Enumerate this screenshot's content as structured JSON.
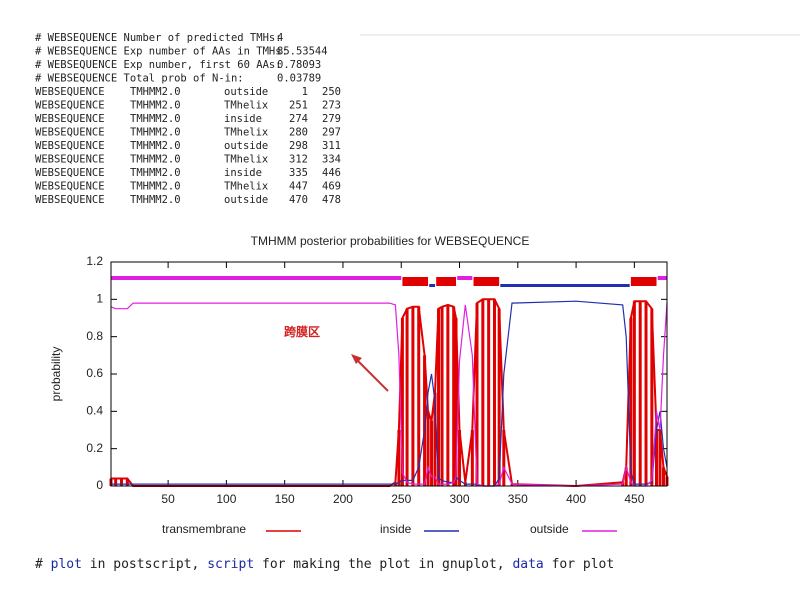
{
  "header_lines": [
    {
      "label": "# WEBSEQUENCE Number of predicted TMHs:",
      "value": 4
    },
    {
      "label": "# WEBSEQUENCE Exp number of AAs in TMHs:",
      "value": 85.53544
    },
    {
      "label": "# WEBSEQUENCE Exp number, first 60 AAs:",
      "value": 0.78093
    },
    {
      "label": "# WEBSEQUENCE Total prob of N-in:",
      "value": 0.03789
    }
  ],
  "table": {
    "rows": [
      [
        "WEBSEQUENCE",
        "TMHMM2.0",
        "outside",
        1,
        250
      ],
      [
        "WEBSEQUENCE",
        "TMHMM2.0",
        "TMhelix",
        251,
        273
      ],
      [
        "WEBSEQUENCE",
        "TMHMM2.0",
        "inside",
        274,
        279
      ],
      [
        "WEBSEQUENCE",
        "TMHMM2.0",
        "TMhelix",
        280,
        297
      ],
      [
        "WEBSEQUENCE",
        "TMHMM2.0",
        "outside",
        298,
        311
      ],
      [
        "WEBSEQUENCE",
        "TMHMM2.0",
        "TMhelix",
        312,
        334
      ],
      [
        "WEBSEQUENCE",
        "TMHMM2.0",
        "inside",
        335,
        446
      ],
      [
        "WEBSEQUENCE",
        "TMHMM2.0",
        "TMhelix",
        447,
        469
      ],
      [
        "WEBSEQUENCE",
        "TMHMM2.0",
        "outside",
        470,
        478
      ]
    ]
  },
  "chart_data": {
    "type": "line",
    "title": "TMHMM posterior probabilities for WEBSEQUENCE",
    "y_label": "probability",
    "annotation": "跨膜区",
    "region_colors": {
      "outside": "#e020e0",
      "TMhelix": "#e00000",
      "inside": "#2030b0"
    },
    "x": [
      1,
      5,
      10,
      15,
      20,
      30,
      50,
      100,
      150,
      200,
      240,
      245,
      248,
      251,
      255,
      260,
      265,
      270,
      273,
      276,
      279,
      282,
      285,
      290,
      295,
      297,
      300,
      305,
      311,
      315,
      320,
      325,
      330,
      334,
      338,
      345,
      400,
      440,
      443,
      447,
      450,
      455,
      460,
      465,
      469,
      472,
      475,
      478
    ],
    "series": [
      {
        "name": "transmembrane",
        "color": "#e00000",
        "style": "impulses",
        "values": [
          0.04,
          0.04,
          0.04,
          0.04,
          0,
          0,
          0,
          0,
          0,
          0,
          0,
          0.02,
          0.3,
          0.9,
          0.95,
          0.96,
          0.96,
          0.7,
          0.4,
          0.35,
          0.5,
          0.95,
          0.96,
          0.97,
          0.96,
          0.9,
          0.3,
          0.02,
          0.3,
          0.98,
          1,
          1,
          1,
          0.95,
          0.3,
          0.01,
          0,
          0.02,
          0.1,
          0.9,
          0.99,
          0.99,
          0.99,
          0.95,
          0.3,
          0.3,
          0.1,
          0.05
        ]
      },
      {
        "name": "inside",
        "color": "#2030b0",
        "style": "line",
        "values": [
          0.01,
          0.01,
          0.01,
          0.01,
          0.01,
          0.01,
          0.01,
          0.01,
          0.01,
          0.01,
          0.01,
          0.01,
          0.02,
          0.03,
          0.03,
          0.03,
          0.1,
          0.3,
          0.5,
          0.6,
          0.45,
          0.04,
          0.03,
          0.02,
          0.02,
          0.05,
          0.03,
          0.01,
          0.01,
          0.01,
          0,
          0,
          0,
          0.04,
          0.6,
          0.98,
          0.99,
          0.97,
          0.8,
          0.08,
          0.01,
          0.01,
          0.01,
          0.02,
          0.3,
          0.4,
          0.2,
          0.1
        ]
      },
      {
        "name": "outside",
        "color": "#e020e0",
        "style": "line",
        "values": [
          0.96,
          0.95,
          0.95,
          0.95,
          0.98,
          0.98,
          0.98,
          0.98,
          0.98,
          0.98,
          0.98,
          0.97,
          0.7,
          0.07,
          0.02,
          0.01,
          0.01,
          0.01,
          0.1,
          0.05,
          0.05,
          0.01,
          0.01,
          0.01,
          0.02,
          0.05,
          0.67,
          0.97,
          0.7,
          0.01,
          0,
          0,
          0,
          0.01,
          0.1,
          0.01,
          0,
          0.01,
          0.1,
          0.02,
          0,
          0,
          0,
          0.03,
          0.4,
          0.3,
          0.7,
          0.98
        ]
      }
    ],
    "xlim": [
      1,
      478
    ],
    "xticks": [
      50,
      100,
      150,
      200,
      250,
      300,
      350,
      400,
      450
    ],
    "ylim": [
      0,
      1.2
    ],
    "yticks": [
      0,
      0.2,
      0.4,
      0.6,
      0.8,
      1,
      1.2
    ]
  },
  "footer": [
    "# ",
    "plot",
    " in postscript, ",
    "script",
    " for making the plot in gnuplot, ",
    "data",
    " for plot"
  ]
}
